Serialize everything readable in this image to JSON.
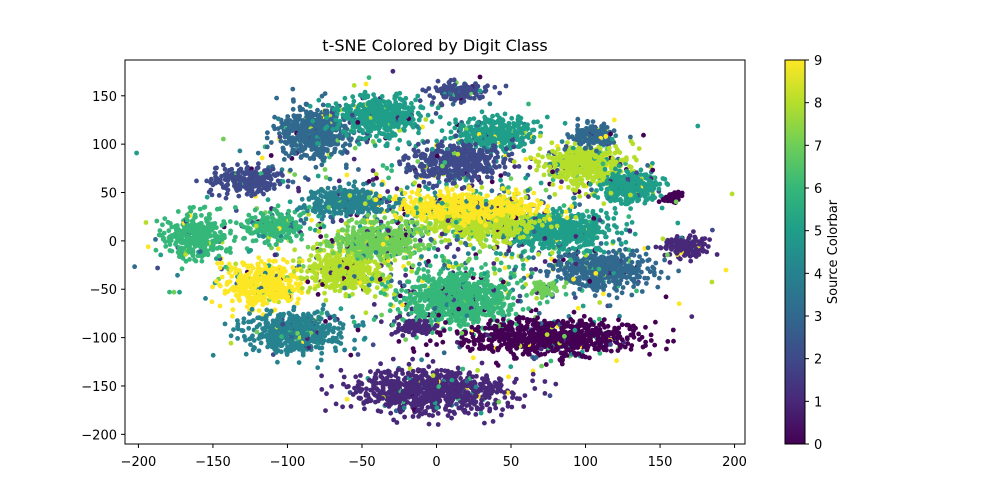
{
  "chart_data": {
    "type": "scatter",
    "title": "t-SNE Colored by Digit Class",
    "xlabel": "",
    "ylabel": "",
    "xlim": [
      -209,
      207
    ],
    "ylim": [
      -210,
      187
    ],
    "xticks": [
      -200,
      -150,
      -100,
      -50,
      0,
      50,
      100,
      150,
      200
    ],
    "yticks": [
      -200,
      -150,
      -100,
      -50,
      0,
      50,
      100,
      150
    ],
    "xtick_labels": [
      "−200",
      "−150",
      "−100",
      "−50",
      "0",
      "50",
      "100",
      "150",
      "200"
    ],
    "ytick_labels": [
      "−200",
      "−150",
      "−100",
      "−50",
      "0",
      "50",
      "100",
      "150"
    ],
    "grid": false,
    "colormap": "viridis",
    "colorbar": {
      "label": "Source Colorbar",
      "range": [
        0,
        9
      ],
      "ticks": [
        0,
        1,
        2,
        3,
        4,
        5,
        6,
        7,
        8,
        9
      ],
      "tick_labels": [
        "0",
        "1",
        "2",
        "3",
        "4",
        "5",
        "6",
        "7",
        "8",
        "9"
      ],
      "stops": [
        "#440154",
        "#482878",
        "#3e4a89",
        "#31688e",
        "#26828e",
        "#1f9e89",
        "#35b779",
        "#6ece58",
        "#b5de2b",
        "#fde725"
      ]
    },
    "clusters": [
      {
        "class": 6,
        "center": [
          -162,
          5
        ],
        "spread": [
          16,
          18
        ]
      },
      {
        "class": 2,
        "center": [
          -128,
          62
        ],
        "spread": [
          18,
          11
        ]
      },
      {
        "class": 3,
        "center": [
          -82,
          112
        ],
        "spread": [
          20,
          20
        ]
      },
      {
        "class": 5,
        "center": [
          -38,
          128
        ],
        "spread": [
          22,
          17
        ]
      },
      {
        "class": 2,
        "center": [
          15,
          155
        ],
        "spread": [
          17,
          7
        ]
      },
      {
        "class": 5,
        "center": [
          40,
          110
        ],
        "spread": [
          22,
          13
        ]
      },
      {
        "class": 2,
        "center": [
          15,
          82
        ],
        "spread": [
          24,
          14
        ]
      },
      {
        "class": 9,
        "center": [
          -115,
          -45
        ],
        "spread": [
          20,
          18
        ]
      },
      {
        "class": 4,
        "center": [
          -95,
          -95
        ],
        "spread": [
          25,
          17
        ]
      },
      {
        "class": 8,
        "center": [
          -60,
          -30
        ],
        "spread": [
          22,
          17
        ]
      },
      {
        "class": 6,
        "center": [
          15,
          -60
        ],
        "spread": [
          28,
          22
        ]
      },
      {
        "class": 0,
        "center": [
          75,
          -100
        ],
        "spread": [
          45,
          15
        ]
      },
      {
        "class": 1,
        "center": [
          -5,
          -155
        ],
        "spread": [
          40,
          18
        ]
      },
      {
        "class": 3,
        "center": [
          110,
          -30
        ],
        "spread": [
          25,
          15
        ]
      },
      {
        "class": 5,
        "center": [
          80,
          10
        ],
        "spread": [
          30,
          15
        ]
      },
      {
        "class": 8,
        "center": [
          30,
          20
        ],
        "spread": [
          30,
          15
        ]
      },
      {
        "class": 9,
        "center": [
          20,
          35
        ],
        "spread": [
          35,
          12
        ]
      },
      {
        "class": 8,
        "center": [
          100,
          80
        ],
        "spread": [
          22,
          18
        ]
      },
      {
        "class": 3,
        "center": [
          105,
          110
        ],
        "spread": [
          12,
          10
        ]
      },
      {
        "class": 5,
        "center": [
          135,
          55
        ],
        "spread": [
          12,
          12
        ]
      },
      {
        "class": 1,
        "center": [
          168,
          -5
        ],
        "spread": [
          12,
          10
        ]
      },
      {
        "class": 0,
        "center": [
          158,
          45
        ],
        "spread": [
          6,
          5
        ]
      },
      {
        "class": 5,
        "center": [
          125,
          55
        ],
        "spread": [
          12,
          12
        ]
      },
      {
        "class": 7,
        "center": [
          72,
          -50
        ],
        "spread": [
          8,
          6
        ]
      },
      {
        "class": 1,
        "center": [
          -15,
          -90
        ],
        "spread": [
          12,
          6
        ]
      },
      {
        "class": 6,
        "center": [
          -110,
          15
        ],
        "spread": [
          15,
          12
        ]
      },
      {
        "class": 4,
        "center": [
          -60,
          40
        ],
        "spread": [
          20,
          12
        ]
      },
      {
        "class": 7,
        "center": [
          -40,
          0
        ],
        "spread": [
          25,
          14
        ]
      }
    ],
    "noise_classes": [
      0,
      1,
      2,
      3,
      4,
      5,
      6,
      7,
      8,
      9
    ]
  }
}
